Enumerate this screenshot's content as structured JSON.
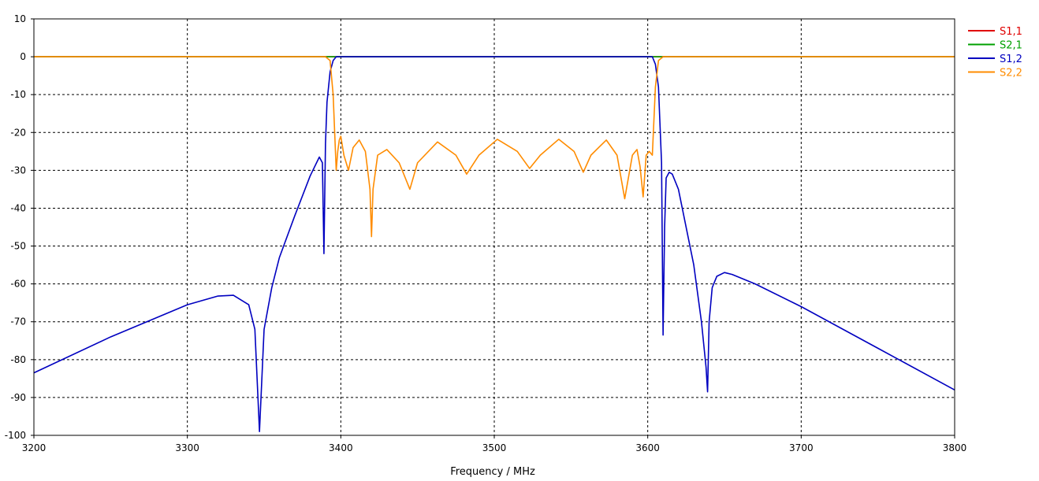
{
  "chart_data": {
    "type": "line",
    "xlabel": "Frequency / MHz",
    "ylabel": "",
    "xlim": [
      3200,
      3800
    ],
    "ylim": [
      -100,
      10
    ],
    "xticks": [
      3200,
      3300,
      3400,
      3500,
      3600,
      3700,
      3800
    ],
    "yticks": [
      10,
      0,
      -10,
      -20,
      -30,
      -40,
      -50,
      -60,
      -70,
      -80,
      -90,
      -100
    ],
    "grid": true,
    "legend_position": "right",
    "series": [
      {
        "name": "S1,1",
        "color": "#e00000",
        "x": [
          3200,
          3800
        ],
        "y": [
          0,
          0
        ]
      },
      {
        "name": "S2,1",
        "color": "#00a000",
        "x": [
          3200,
          3800
        ],
        "y": [
          0,
          0
        ]
      },
      {
        "name": "S1,2",
        "color": "#0000c0",
        "x": [
          3200,
          3250,
          3300,
          3320,
          3330,
          3340,
          3344,
          3347,
          3350,
          3355,
          3360,
          3370,
          3380,
          3386,
          3388,
          3389,
          3390,
          3391,
          3393,
          3395,
          3397,
          3400,
          3500,
          3600,
          3603,
          3605,
          3607,
          3609,
          3610,
          3611,
          3612,
          3614,
          3616,
          3620,
          3630,
          3635,
          3638,
          3639,
          3640,
          3642,
          3645,
          3650,
          3655,
          3670,
          3700,
          3750,
          3800
        ],
        "y": [
          -83.5,
          -74,
          -65.5,
          -63.2,
          -63,
          -65.5,
          -72,
          -99,
          -72,
          -61,
          -53,
          -42,
          -31.5,
          -26.5,
          -28,
          -52,
          -23,
          -12,
          -4,
          -1,
          0,
          0,
          0,
          0,
          0,
          -2,
          -8,
          -28,
          -73.5,
          -45,
          -32,
          -30.5,
          -31,
          -35,
          -55,
          -70,
          -82,
          -88.5,
          -70,
          -61,
          -58,
          -57,
          -57.5,
          -60,
          -66,
          -77,
          -88
        ]
      },
      {
        "name": "S2,2",
        "color": "#ff8c00",
        "x": [
          3200,
          3390,
          3393,
          3395,
          3397,
          3398,
          3399,
          3400,
          3402,
          3405,
          3408,
          3412,
          3416,
          3419,
          3420,
          3421,
          3424,
          3430,
          3438,
          3445,
          3450,
          3463,
          3475,
          3482,
          3490,
          3502,
          3515,
          3523,
          3530,
          3542,
          3552,
          3558,
          3563,
          3573,
          3580,
          3585,
          3590,
          3593,
          3595,
          3597,
          3599,
          3601,
          3603,
          3605,
          3607,
          3610,
          3800
        ],
        "y": [
          0,
          0,
          -1,
          -10,
          -30,
          -25,
          -22,
          -21,
          -26,
          -30,
          -24,
          -22,
          -25,
          -35,
          -47.5,
          -35,
          -26,
          -24.5,
          -28,
          -35,
          -28,
          -22.5,
          -26,
          -31,
          -26,
          -21.8,
          -25,
          -29.5,
          -26,
          -21.8,
          -25,
          -30.5,
          -26,
          -22,
          -26,
          -37.5,
          -26,
          -24.5,
          -29,
          -37,
          -26,
          -25,
          -26,
          -8,
          -1,
          0,
          0
        ]
      }
    ]
  }
}
